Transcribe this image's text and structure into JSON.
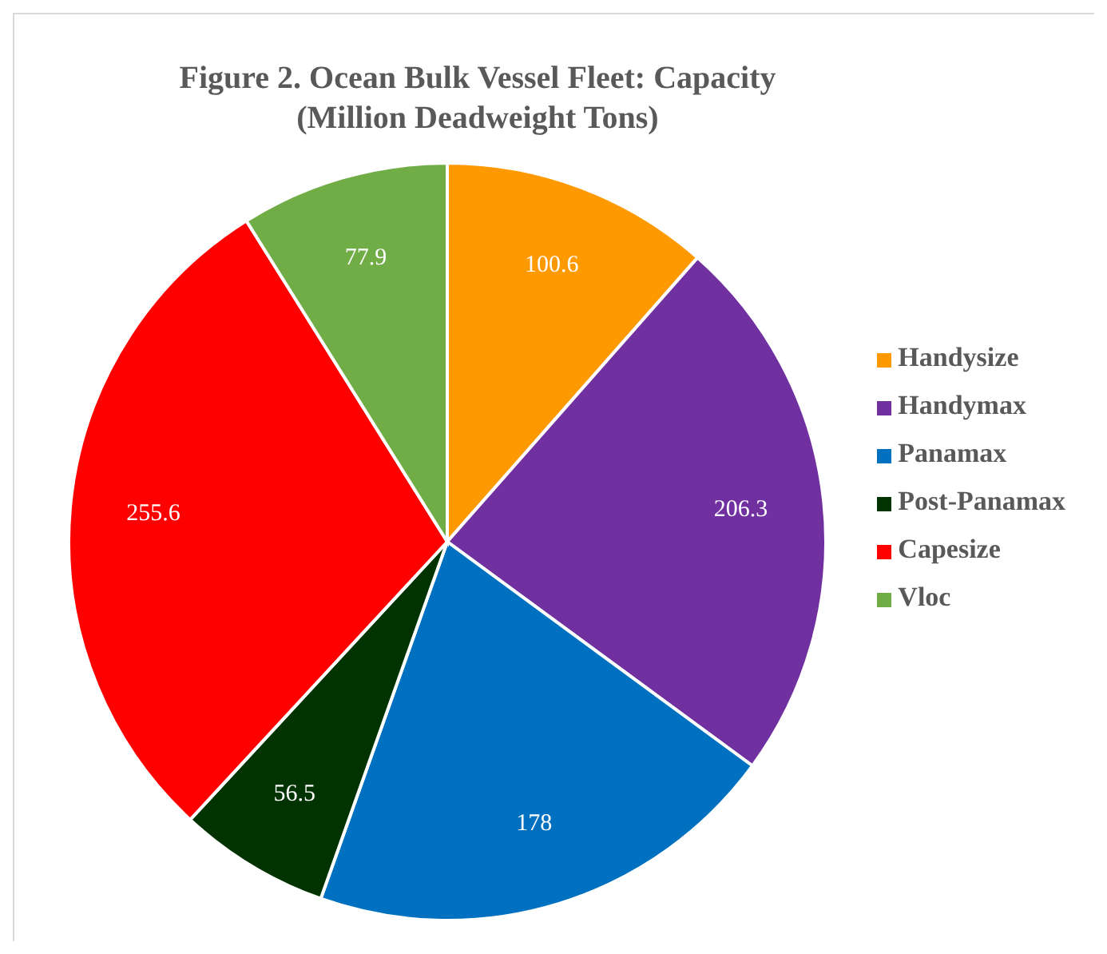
{
  "chart_data": {
    "type": "pie",
    "title": "Figure 2. Ocean Bulk Vessel Fleet: Capacity",
    "subtitle": "(Million  Deadweight Tons)",
    "categories": [
      "Handysize",
      "Handymax",
      "Panamax",
      "Post-Panamax",
      "Capesize",
      "Vloc"
    ],
    "values": [
      100.6,
      206.3,
      178,
      56.5,
      255.6,
      77.9
    ],
    "colors": [
      "#ff9900",
      "#7030a0",
      "#0070c0",
      "#003300",
      "#ff0000",
      "#70ad47"
    ],
    "data_labels": true,
    "legend": "right"
  }
}
